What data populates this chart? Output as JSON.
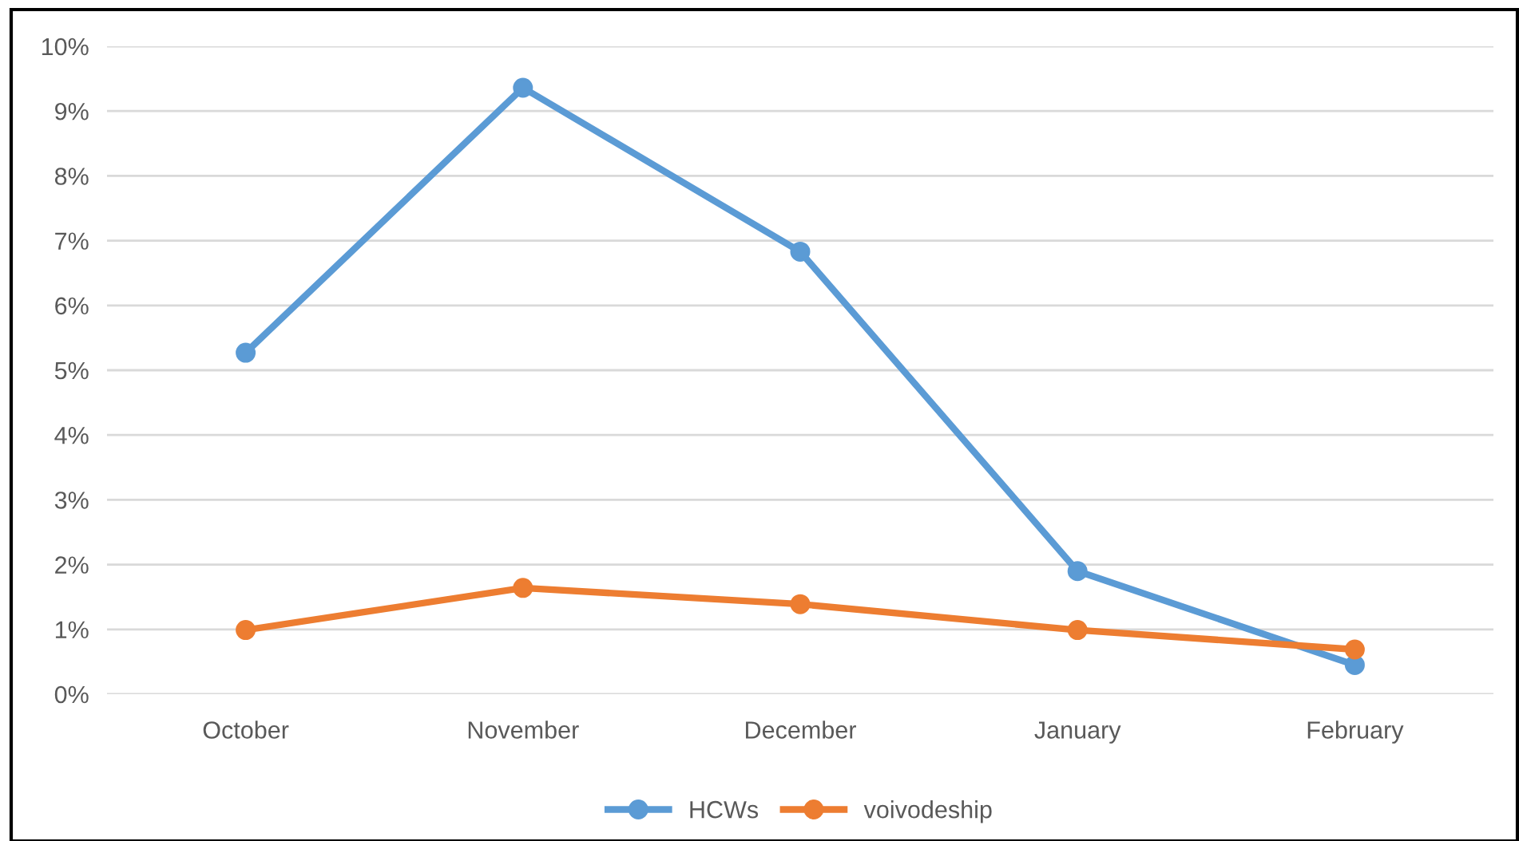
{
  "chart_data": {
    "type": "line",
    "categories": [
      "October",
      "November",
      "December",
      "January",
      "February"
    ],
    "series": [
      {
        "name": "HCWs",
        "color": "#5b9bd5",
        "values": [
          5.27,
          9.36,
          6.83,
          1.9,
          0.45
        ]
      },
      {
        "name": "voivodeship",
        "color": "#ed7d31",
        "values": [
          0.99,
          1.64,
          1.39,
          0.99,
          0.69
        ]
      }
    ],
    "ylim": [
      0,
      10
    ],
    "yticks": [
      {
        "value": 0,
        "label": "0%"
      },
      {
        "value": 1,
        "label": "1%"
      },
      {
        "value": 2,
        "label": "2%"
      },
      {
        "value": 3,
        "label": "3%"
      },
      {
        "value": 4,
        "label": "4%"
      },
      {
        "value": 5,
        "label": "5%"
      },
      {
        "value": 6,
        "label": "6%"
      },
      {
        "value": 7,
        "label": "7%"
      },
      {
        "value": 8,
        "label": "8%"
      },
      {
        "value": 9,
        "label": "9%"
      },
      {
        "value": 10,
        "label": "10%"
      }
    ],
    "grid": "y",
    "legend": "bottom",
    "marker": "circle",
    "line_style": "solid"
  }
}
